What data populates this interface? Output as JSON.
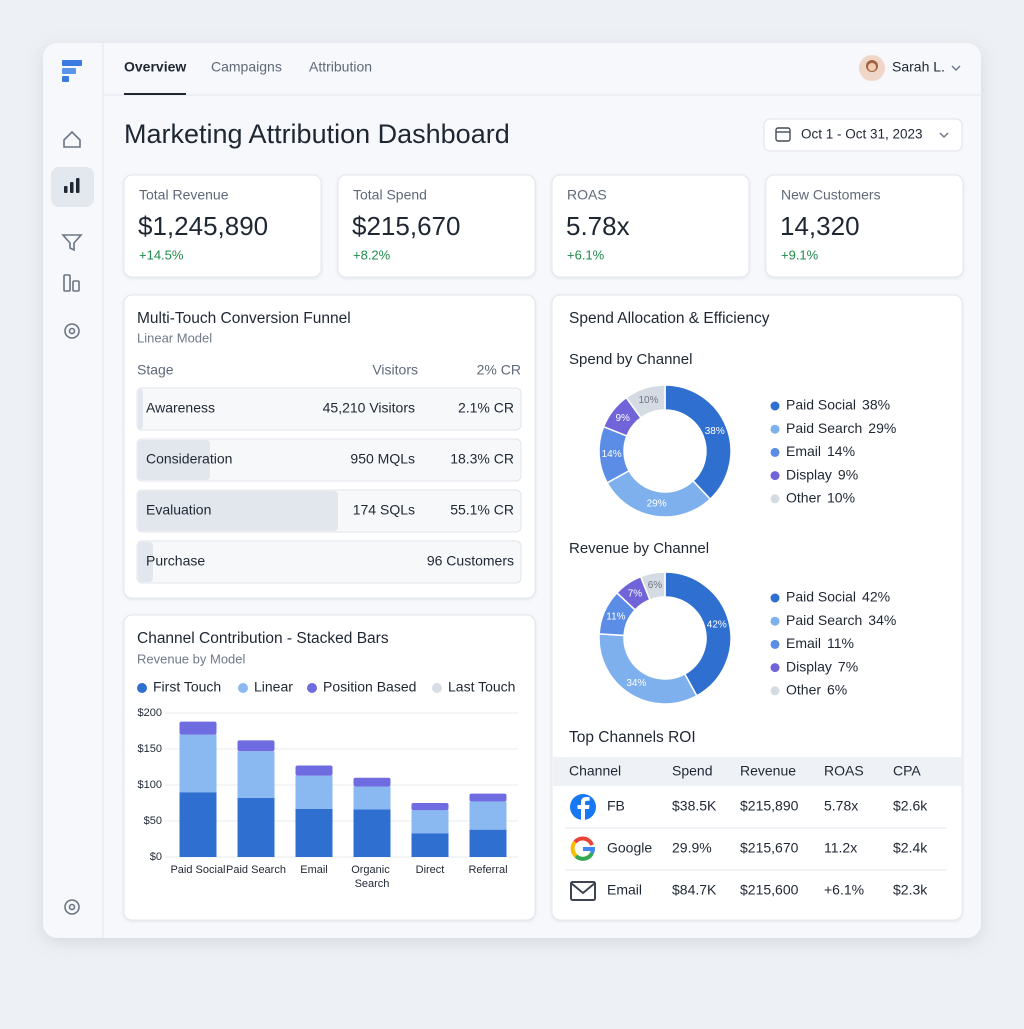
{
  "tabs": [
    "Overview",
    "Campaigns",
    "Attribution"
  ],
  "user": "Sarah L.",
  "title": "Marketing Attribution Dashboard",
  "date_range": "Oct 1 - Oct 31, 2023",
  "kpis": [
    {
      "label": "Total Revenue",
      "value": "$1,245,890",
      "change": "+14.5%"
    },
    {
      "label": "Total Spend",
      "value": "$215,670",
      "change": "+8.2%"
    },
    {
      "label": "ROAS",
      "value": "5.78x",
      "change": "+6.1%"
    },
    {
      "label": "New Customers",
      "value": "14,320",
      "change": "+9.1%"
    }
  ],
  "funnel": {
    "title": "Multi-Touch Conversion Funnel",
    "subtitle": "Linear Model",
    "columns": [
      "Stage",
      "Visitors",
      "2% CR"
    ],
    "rows": [
      [
        "Awareness",
        "45,210 Visitors",
        "2.1% CR"
      ],
      [
        "Consideration",
        "950 MQLs",
        "18.3% CR"
      ],
      [
        "Evaluation",
        "174 SQLs",
        "55.1% CR"
      ],
      [
        "Purchase",
        "96 Customers"
      ]
    ]
  },
  "stacked_chart": {
    "type": "bar",
    "stacked": true,
    "title": "Channel Contribution - Stacked Bars",
    "subtitle": "Revenue by Model",
    "categories": [
      "Paid Social",
      "Paid Search",
      "Email",
      "Organic Search",
      "Direct",
      "Referral"
    ],
    "series": [
      {
        "name": "First Touch",
        "color": "#2f6fd0",
        "values": [
          90,
          82,
          67,
          66,
          33,
          38
        ]
      },
      {
        "name": "Linear",
        "color": "#8ab8f0",
        "values": [
          80,
          65,
          46,
          32,
          32,
          39
        ]
      },
      {
        "name": "Position Based",
        "color": "#6f6be0",
        "values": [
          18,
          15,
          14,
          12,
          10,
          11
        ]
      },
      {
        "name": "Last Touch",
        "color": "#d7dde5",
        "values": [
          0,
          0,
          0,
          0,
          0,
          0
        ]
      }
    ],
    "ylim": [
      0,
      200
    ],
    "yticks": [
      {
        "value": 0,
        "label": "$0"
      },
      {
        "value": 50,
        "label": "$50"
      },
      {
        "value": 100,
        "label": "$100"
      },
      {
        "value": 150,
        "label": "$150"
      },
      {
        "value": 200,
        "label": "$200"
      }
    ],
    "grid": true
  },
  "allocation": {
    "title": "Spend Allocation & Efficiency",
    "charts": [
      {
        "type": "donut",
        "title": "Spend by Channel",
        "categories": [
          "Paid Social",
          "Paid Search",
          "Email",
          "Display",
          "Other"
        ],
        "values": [
          38,
          29,
          14,
          9,
          10
        ],
        "value_labels": [
          "38%",
          "29%",
          "14%",
          "9%",
          "10%"
        ],
        "colors": [
          "#2f6fd0",
          "#7eb0ee",
          "#5b8de6",
          "#7064d8",
          "#d5dbe3"
        ]
      },
      {
        "type": "donut",
        "title": "Revenue by Channel",
        "categories": [
          "Paid Social",
          "Paid Search",
          "Email",
          "Display",
          "Other"
        ],
        "values": [
          42,
          34,
          11,
          7,
          6
        ],
        "value_labels": [
          "42%",
          "34%",
          "11%",
          "7%",
          "6%"
        ],
        "colors": [
          "#2f6fd0",
          "#7eb0ee",
          "#5b8de6",
          "#7064d8",
          "#d5dbe3"
        ]
      }
    ]
  },
  "roi_table": {
    "title": "Top Channels ROI",
    "columns": [
      "Channel",
      "Spend",
      "Revenue",
      "ROAS",
      "CPA"
    ],
    "rows": [
      [
        "FB",
        "$38.5K",
        "$215,890",
        "5.78x",
        "$2.6k"
      ],
      [
        "Google",
        "29.9%",
        "$215,670",
        "11.2x",
        "$2.4k"
      ],
      [
        "Email",
        "$84.7K",
        "$215,600",
        "+6.1%",
        "$2.3k"
      ]
    ]
  }
}
